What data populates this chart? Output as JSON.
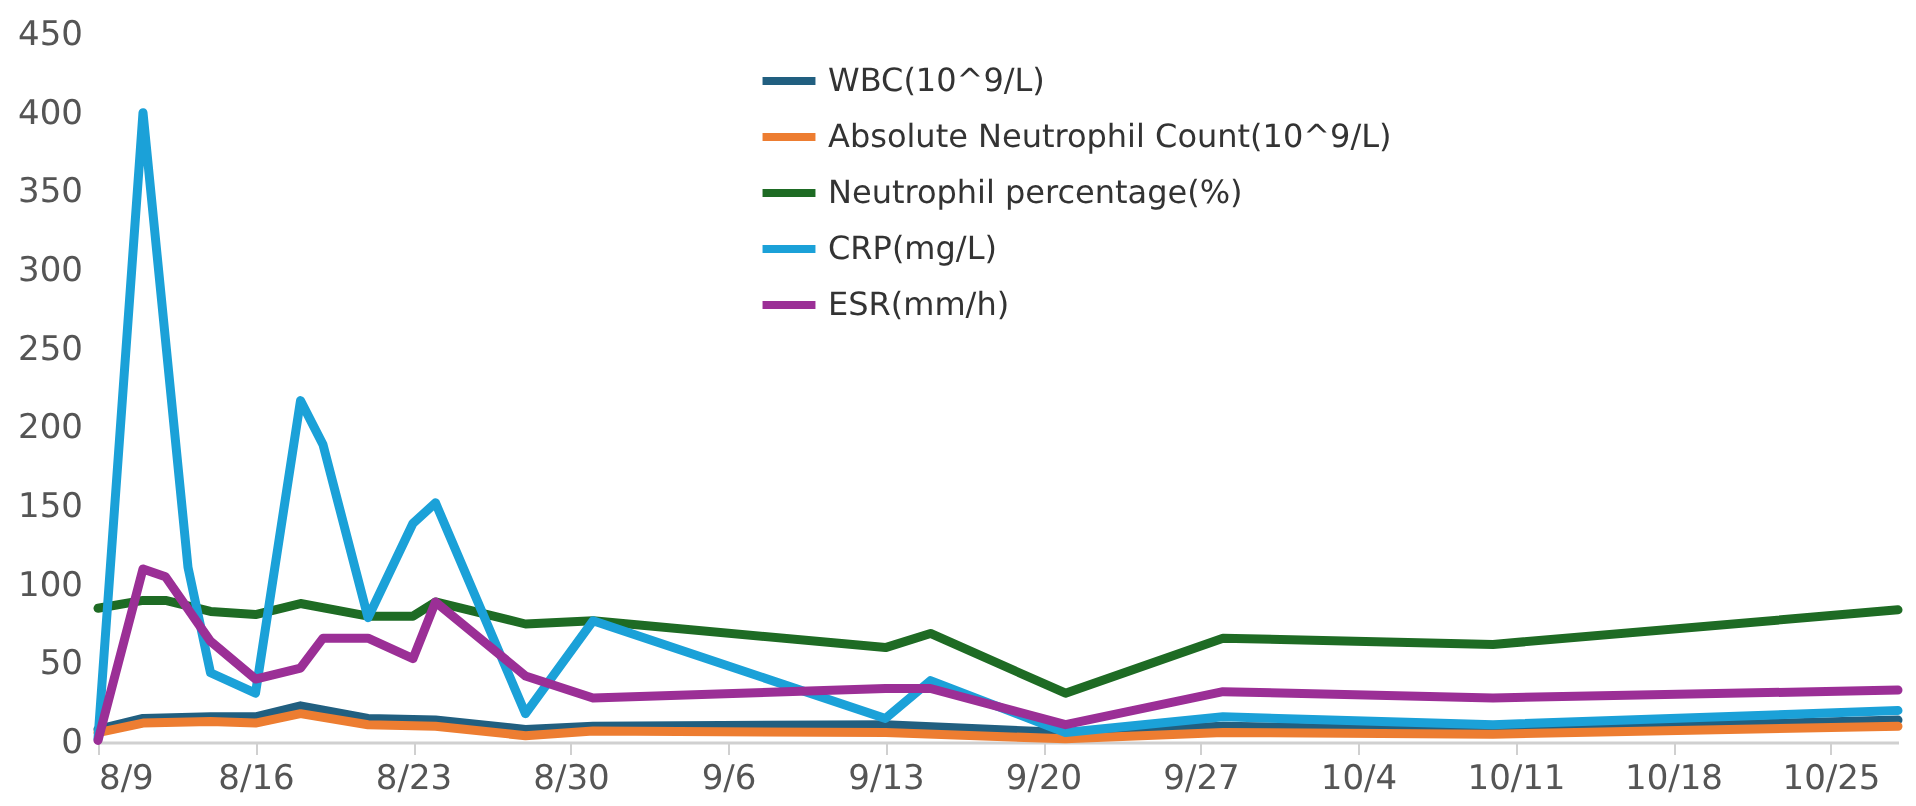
{
  "chart_data": {
    "type": "line",
    "xlim": [
      "--08-09",
      "--10-28"
    ],
    "xticks": [
      {
        "value": "--08-09",
        "label": "8/9"
      },
      {
        "value": "--08-16",
        "label": "8/16"
      },
      {
        "value": "--08-23",
        "label": "8/23"
      },
      {
        "value": "--08-30",
        "label": "8/30"
      },
      {
        "value": "--09-06",
        "label": "9/6"
      },
      {
        "value": "--09-13",
        "label": "9/13"
      },
      {
        "value": "--09-20",
        "label": "9/20"
      },
      {
        "value": "--09-27",
        "label": "9/27"
      },
      {
        "value": "--10-04",
        "label": "10/4"
      },
      {
        "value": "--10-11",
        "label": "10/11"
      },
      {
        "value": "--10-18",
        "label": "10/18"
      },
      {
        "value": "--10-25",
        "label": "10/25"
      }
    ],
    "ylim": [
      0,
      450
    ],
    "yticks": [
      0,
      50,
      100,
      150,
      200,
      250,
      300,
      350,
      400,
      450
    ],
    "grid": false,
    "legend": "top",
    "marker": "none",
    "line_style": "solid",
    "series": [
      {
        "name": "WBC(10^9/L)",
        "color": "#215f80",
        "x": [
          "--08-09",
          "--08-11",
          "--08-14",
          "--08-16",
          "--08-18",
          "--08-21",
          "--08-24",
          "--08-28",
          "--08-31",
          "--09-13",
          "--09-21",
          "--09-28",
          "--10-10",
          "--10-28"
        ],
        "values": [
          8,
          15,
          16,
          16,
          23,
          15,
          14,
          8,
          10,
          11,
          6,
          10,
          7,
          14
        ]
      },
      {
        "name": "Absolute Neutrophil Count(10^9/L)",
        "color": "#ed7d31",
        "x": [
          "--08-09",
          "--08-11",
          "--08-14",
          "--08-16",
          "--08-18",
          "--08-21",
          "--08-24",
          "--08-28",
          "--08-31",
          "--09-13",
          "--09-21",
          "--09-28",
          "--10-10",
          "--10-28"
        ],
        "values": [
          6,
          12,
          13,
          12,
          18,
          11,
          10,
          4,
          7,
          6,
          2,
          6,
          5,
          10
        ]
      },
      {
        "name": "Neutrophil percentage(%)",
        "color": "#1e6b24",
        "x": [
          "--08-09",
          "--08-11",
          "--08-12",
          "--08-14",
          "--08-16",
          "--08-18",
          "--08-21",
          "--08-23",
          "--08-24",
          "--08-28",
          "--08-31",
          "--09-13",
          "--09-15",
          "--09-21",
          "--09-28",
          "--10-10",
          "--10-28"
        ],
        "values": [
          85,
          90,
          90,
          83,
          81,
          88,
          80,
          80,
          89,
          75,
          77,
          60,
          69,
          31,
          66,
          62,
          84
        ]
      },
      {
        "name": "CRP(mg/L)",
        "color": "#1ba1d8",
        "x": [
          "--08-09",
          "--08-11",
          "--08-13",
          "--08-14",
          "--08-16",
          "--08-18",
          "--08-19",
          "--08-21",
          "--08-23",
          "--08-24",
          "--08-28",
          "--08-31",
          "--09-13",
          "--09-15",
          "--09-21",
          "--09-28",
          "--10-10",
          "--10-28"
        ],
        "values": [
          2,
          400,
          111,
          44,
          31,
          217,
          189,
          79,
          139,
          152,
          18,
          77,
          15,
          39,
          6,
          16,
          11,
          20
        ]
      },
      {
        "name": "ESR(mm/h)",
        "color": "#9b2f96",
        "x": [
          "--08-09",
          "--08-11",
          "--08-12",
          "--08-14",
          "--08-16",
          "--08-18",
          "--08-19",
          "--08-21",
          "--08-23",
          "--08-24",
          "--08-28",
          "--08-31",
          "--09-13",
          "--09-15",
          "--09-21",
          "--09-28",
          "--10-10",
          "--10-28"
        ],
        "values": [
          1,
          110,
          105,
          64,
          40,
          47,
          66,
          66,
          53,
          89,
          42,
          28,
          34,
          34,
          11,
          32,
          28,
          33
        ]
      }
    ]
  }
}
